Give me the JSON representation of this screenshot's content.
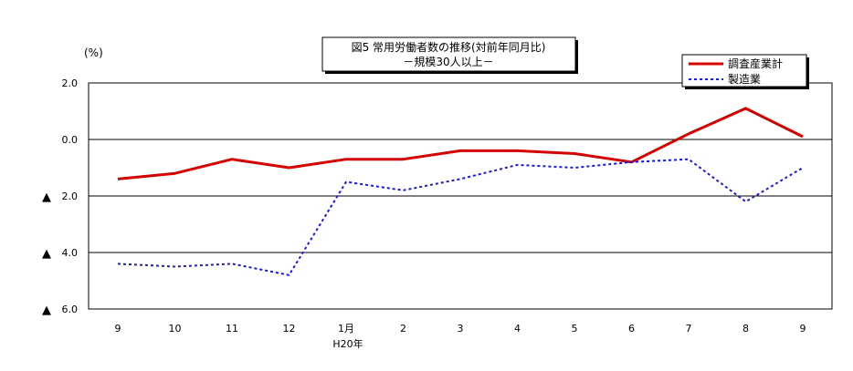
{
  "chart_data": {
    "type": "line",
    "title": "図5 常用労働者数の推移(対前年同月比)",
    "subtitle": "－規模30人以上－",
    "ylabel": "(%)",
    "xlabel": "",
    "categories": [
      "9",
      "10",
      "11",
      "12",
      "1月",
      "2",
      "3",
      "4",
      "5",
      "6",
      "7",
      "8",
      "9"
    ],
    "x_sublabel": "H20年",
    "ylim": [
      -6.0,
      2.0
    ],
    "yticks": [
      {
        "value": 2.0,
        "label": "2.0",
        "negative": false
      },
      {
        "value": 0.0,
        "label": "0.0",
        "negative": false
      },
      {
        "value": -2.0,
        "label": "2.0",
        "negative": true
      },
      {
        "value": -4.0,
        "label": "4.0",
        "negative": true
      },
      {
        "value": -6.0,
        "label": "6.0",
        "negative": true
      }
    ],
    "negative_marker": "▲",
    "grid": true,
    "legend_position": "top-right",
    "series": [
      {
        "name": "調査産業計",
        "color": "#d40000",
        "dash": "solid",
        "values": [
          -1.4,
          -1.2,
          -0.7,
          -1.0,
          -0.7,
          -0.7,
          -0.4,
          -0.4,
          -0.5,
          -0.8,
          0.2,
          1.1,
          0.1
        ]
      },
      {
        "name": "製造業",
        "color": "#1b1bd6",
        "dash": "dotted",
        "values": [
          -4.4,
          -4.5,
          -4.4,
          -4.8,
          -1.5,
          -1.8,
          -1.4,
          -0.9,
          -1.0,
          -0.8,
          -0.7,
          -2.2,
          -1.0
        ]
      }
    ]
  }
}
